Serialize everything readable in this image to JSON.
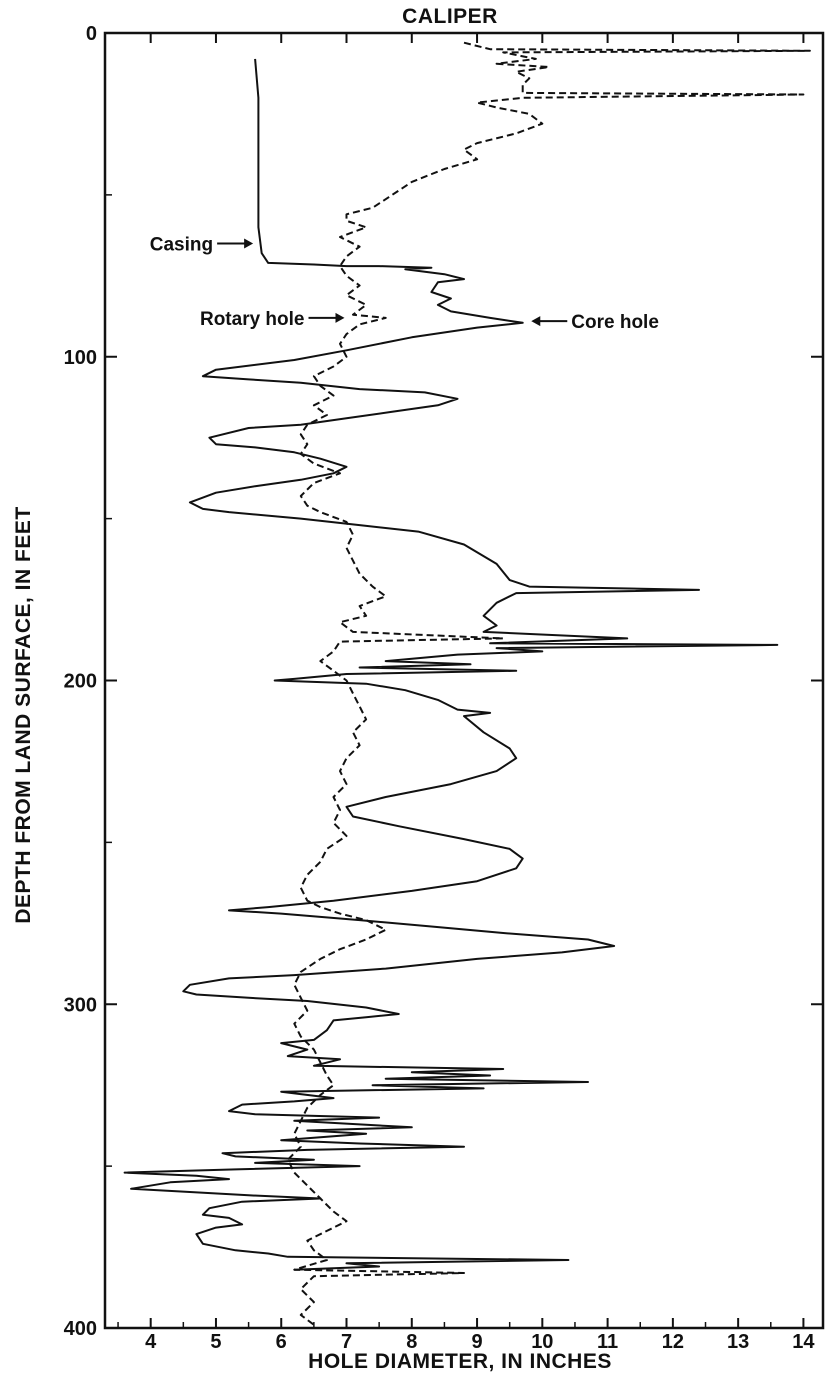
{
  "chart_data": {
    "type": "line",
    "title": "CALIPER",
    "xlabel": "HOLE DIAMETER, IN INCHES",
    "ylabel": "DEPTH FROM LAND SURFACE, IN FEET",
    "xlim": [
      3.3,
      14.3
    ],
    "ylim": [
      0,
      400
    ],
    "y_inverted": true,
    "x_ticks": [
      "4",
      "5",
      "6",
      "7",
      "8",
      "9",
      "10",
      "11",
      "12",
      "13",
      "14"
    ],
    "y_ticks": [
      "0",
      "100",
      "200",
      "300",
      "400"
    ],
    "grid": false,
    "legend": "none",
    "annotations": [
      {
        "text": "Casing",
        "point": [
          5.6,
          65
        ]
      },
      {
        "text": "Rotary hole",
        "point": [
          7.0,
          88
        ]
      },
      {
        "text": "Core hole",
        "point": [
          9.8,
          89
        ]
      }
    ],
    "series": [
      {
        "style": "solid",
        "points": [
          [
            5.6,
            8
          ],
          [
            5.65,
            20
          ],
          [
            5.65,
            40
          ],
          [
            5.65,
            60
          ],
          [
            5.7,
            68
          ],
          [
            5.8,
            71
          ],
          [
            6.5,
            71.5
          ],
          [
            7.0,
            72
          ],
          [
            7.5,
            72
          ],
          [
            8.3,
            72.5
          ],
          [
            7.9,
            73
          ],
          [
            8.5,
            74.5
          ],
          [
            8.8,
            76
          ],
          [
            8.4,
            77
          ],
          [
            8.3,
            80
          ],
          [
            8.6,
            82
          ],
          [
            8.4,
            84
          ],
          [
            8.6,
            86
          ],
          [
            9.2,
            88
          ],
          [
            9.7,
            89.5
          ],
          [
            9.0,
            91
          ],
          [
            8.0,
            94
          ],
          [
            7.0,
            98
          ],
          [
            6.2,
            101
          ],
          [
            5.0,
            104
          ],
          [
            4.8,
            106
          ],
          [
            5.5,
            107
          ],
          [
            6.3,
            108
          ],
          [
            7.2,
            110
          ],
          [
            8.2,
            111
          ],
          [
            8.7,
            113
          ],
          [
            8.4,
            115
          ],
          [
            7.7,
            117
          ],
          [
            7.0,
            119
          ],
          [
            6.3,
            121
          ],
          [
            5.5,
            122
          ],
          [
            4.9,
            125
          ],
          [
            5.0,
            127
          ],
          [
            5.6,
            128
          ],
          [
            6.2,
            129.5
          ],
          [
            6.6,
            131.5
          ],
          [
            7.0,
            134
          ],
          [
            6.8,
            136
          ],
          [
            6.3,
            138
          ],
          [
            5.6,
            140
          ],
          [
            5.0,
            142
          ],
          [
            4.6,
            145
          ],
          [
            4.8,
            147
          ],
          [
            5.2,
            148
          ],
          [
            6.3,
            150
          ],
          [
            7.2,
            152
          ],
          [
            8.1,
            154
          ],
          [
            8.8,
            158
          ],
          [
            9.3,
            164
          ],
          [
            9.5,
            169
          ],
          [
            9.8,
            171
          ],
          [
            12.4,
            172
          ],
          [
            9.6,
            173
          ],
          [
            9.3,
            176
          ],
          [
            9.1,
            180
          ],
          [
            9.3,
            183
          ],
          [
            9.1,
            185
          ],
          [
            11.3,
            187
          ],
          [
            9.2,
            188.5
          ],
          [
            13.6,
            189
          ],
          [
            9.3,
            190
          ],
          [
            10.0,
            191
          ],
          [
            8.7,
            192
          ],
          [
            7.6,
            194
          ],
          [
            8.9,
            195
          ],
          [
            7.2,
            196
          ],
          [
            9.6,
            197
          ],
          [
            7.0,
            198
          ],
          [
            6.2,
            199.5
          ],
          [
            5.9,
            200
          ],
          [
            7.3,
            201
          ],
          [
            7.9,
            203
          ],
          [
            8.4,
            206
          ],
          [
            8.7,
            209
          ],
          [
            9.2,
            210
          ],
          [
            8.8,
            211
          ],
          [
            9.1,
            216
          ],
          [
            9.5,
            221
          ],
          [
            9.6,
            224
          ],
          [
            9.3,
            228
          ],
          [
            8.6,
            232
          ],
          [
            7.6,
            236
          ],
          [
            7.0,
            239
          ],
          [
            7.1,
            242
          ],
          [
            7.8,
            245
          ],
          [
            8.8,
            249
          ],
          [
            9.5,
            252
          ],
          [
            9.7,
            255
          ],
          [
            9.6,
            258
          ],
          [
            9.0,
            262
          ],
          [
            8.0,
            265
          ],
          [
            6.8,
            268
          ],
          [
            5.8,
            270
          ],
          [
            5.2,
            271
          ],
          [
            6.0,
            272
          ],
          [
            7.2,
            274
          ],
          [
            8.3,
            276
          ],
          [
            9.4,
            278
          ],
          [
            10.7,
            280
          ],
          [
            11.1,
            282
          ],
          [
            10.3,
            284
          ],
          [
            9.0,
            286
          ],
          [
            7.6,
            289
          ],
          [
            6.2,
            291
          ],
          [
            5.2,
            292
          ],
          [
            4.6,
            294
          ],
          [
            4.5,
            296
          ],
          [
            4.7,
            297
          ],
          [
            5.5,
            298
          ],
          [
            6.4,
            299
          ],
          [
            7.3,
            301
          ],
          [
            7.8,
            303
          ],
          [
            7.3,
            304
          ],
          [
            6.8,
            305
          ],
          [
            6.7,
            308
          ],
          [
            6.5,
            311
          ],
          [
            6.0,
            312
          ],
          [
            6.4,
            314
          ],
          [
            6.1,
            316
          ],
          [
            6.9,
            317
          ],
          [
            6.5,
            319
          ],
          [
            9.4,
            320
          ],
          [
            8.0,
            321
          ],
          [
            9.2,
            322
          ],
          [
            7.6,
            323
          ],
          [
            10.7,
            324
          ],
          [
            7.4,
            325
          ],
          [
            9.1,
            326
          ],
          [
            6.0,
            327
          ],
          [
            6.8,
            329
          ],
          [
            6.2,
            330
          ],
          [
            5.4,
            331
          ],
          [
            5.2,
            333
          ],
          [
            5.6,
            334
          ],
          [
            7.5,
            335
          ],
          [
            6.2,
            336
          ],
          [
            8.0,
            338
          ],
          [
            6.4,
            339
          ],
          [
            7.3,
            340
          ],
          [
            6.0,
            342
          ],
          [
            7.2,
            343
          ],
          [
            8.8,
            344
          ],
          [
            6.4,
            345
          ],
          [
            5.1,
            346
          ],
          [
            5.3,
            347
          ],
          [
            6.5,
            348
          ],
          [
            5.6,
            349
          ],
          [
            7.2,
            350
          ],
          [
            5.3,
            351
          ],
          [
            3.6,
            352
          ],
          [
            4.7,
            353
          ],
          [
            5.2,
            354
          ],
          [
            4.3,
            355
          ],
          [
            3.7,
            357
          ],
          [
            4.6,
            358
          ],
          [
            5.5,
            359
          ],
          [
            6.6,
            360
          ],
          [
            5.4,
            361
          ],
          [
            4.9,
            363
          ],
          [
            4.8,
            365
          ],
          [
            5.2,
            366
          ],
          [
            5.4,
            368
          ],
          [
            5.0,
            369
          ],
          [
            4.7,
            371
          ],
          [
            4.8,
            374
          ],
          [
            5.3,
            376
          ],
          [
            5.8,
            377
          ],
          [
            6.1,
            378
          ],
          [
            10.4,
            379
          ],
          [
            7.0,
            380
          ],
          [
            7.5,
            381
          ],
          [
            6.2,
            382
          ]
        ]
      },
      {
        "style": "dashed",
        "points": [
          [
            8.8,
            3
          ],
          [
            9.2,
            5
          ],
          [
            14.1,
            5.5
          ],
          [
            9.4,
            6
          ],
          [
            9.9,
            8
          ],
          [
            9.3,
            9.5
          ],
          [
            10.1,
            10.5
          ],
          [
            9.6,
            12
          ],
          [
            9.8,
            14
          ],
          [
            9.7,
            16
          ],
          [
            9.7,
            18.5
          ],
          [
            14.0,
            19
          ],
          [
            9.7,
            20
          ],
          [
            9.0,
            21.5
          ],
          [
            9.3,
            23
          ],
          [
            9.8,
            25
          ],
          [
            10.0,
            28
          ],
          [
            9.6,
            31
          ],
          [
            9.0,
            34
          ],
          [
            8.8,
            36
          ],
          [
            9.0,
            39
          ],
          [
            8.5,
            42
          ],
          [
            8.0,
            46
          ],
          [
            7.7,
            50
          ],
          [
            7.4,
            54
          ],
          [
            7.0,
            56
          ],
          [
            7.0,
            58
          ],
          [
            7.3,
            60
          ],
          [
            6.9,
            63
          ],
          [
            7.2,
            66
          ],
          [
            7.0,
            69
          ],
          [
            6.9,
            72
          ],
          [
            7.0,
            75
          ],
          [
            7.2,
            78
          ],
          [
            7.0,
            81
          ],
          [
            7.3,
            84
          ],
          [
            7.1,
            87
          ],
          [
            7.6,
            88
          ],
          [
            7.2,
            90
          ],
          [
            7.0,
            93
          ],
          [
            6.9,
            96
          ],
          [
            7.0,
            100
          ],
          [
            6.8,
            103
          ],
          [
            6.5,
            106
          ],
          [
            6.6,
            109
          ],
          [
            6.8,
            112
          ],
          [
            6.5,
            115
          ],
          [
            6.7,
            118
          ],
          [
            6.4,
            121
          ],
          [
            6.3,
            124
          ],
          [
            6.4,
            127
          ],
          [
            6.3,
            130
          ],
          [
            6.5,
            133
          ],
          [
            6.9,
            136
          ],
          [
            6.5,
            139
          ],
          [
            6.3,
            143
          ],
          [
            6.4,
            146
          ],
          [
            6.6,
            148
          ],
          [
            7.0,
            151
          ],
          [
            7.1,
            155
          ],
          [
            7.0,
            159
          ],
          [
            7.1,
            163
          ],
          [
            7.2,
            167
          ],
          [
            7.4,
            171
          ],
          [
            7.6,
            174
          ],
          [
            7.2,
            177
          ],
          [
            7.3,
            180
          ],
          [
            6.9,
            182
          ],
          [
            7.1,
            185
          ],
          [
            9.4,
            187
          ],
          [
            6.9,
            188
          ],
          [
            6.8,
            191
          ],
          [
            6.6,
            194
          ],
          [
            6.8,
            197
          ],
          [
            7.0,
            200
          ],
          [
            7.1,
            204
          ],
          [
            7.2,
            208
          ],
          [
            7.3,
            212
          ],
          [
            7.1,
            216
          ],
          [
            7.2,
            220
          ],
          [
            7.0,
            224
          ],
          [
            6.9,
            228
          ],
          [
            7.0,
            232
          ],
          [
            6.8,
            236
          ],
          [
            6.9,
            240
          ],
          [
            6.8,
            244
          ],
          [
            7.0,
            248
          ],
          [
            6.7,
            252
          ],
          [
            6.6,
            256
          ],
          [
            6.4,
            260
          ],
          [
            6.3,
            264
          ],
          [
            6.4,
            268
          ],
          [
            6.6,
            270
          ],
          [
            6.9,
            272
          ],
          [
            7.3,
            274
          ],
          [
            7.6,
            277
          ],
          [
            7.3,
            280
          ],
          [
            6.9,
            283
          ],
          [
            6.6,
            286
          ],
          [
            6.3,
            290
          ],
          [
            6.2,
            294
          ],
          [
            6.3,
            298
          ],
          [
            6.4,
            302
          ],
          [
            6.2,
            306
          ],
          [
            6.3,
            310
          ],
          [
            6.5,
            314
          ],
          [
            6.6,
            318
          ],
          [
            6.7,
            322
          ],
          [
            6.8,
            325
          ],
          [
            6.6,
            328
          ],
          [
            6.4,
            332
          ],
          [
            6.3,
            336
          ],
          [
            6.2,
            340
          ],
          [
            6.3,
            344
          ],
          [
            6.1,
            348
          ],
          [
            6.2,
            352
          ],
          [
            6.4,
            356
          ],
          [
            6.6,
            360
          ],
          [
            6.8,
            364
          ],
          [
            7.0,
            367
          ],
          [
            6.7,
            370
          ],
          [
            6.4,
            373
          ],
          [
            6.5,
            376
          ],
          [
            6.7,
            379
          ],
          [
            6.2,
            382
          ],
          [
            8.8,
            383
          ],
          [
            6.5,
            384
          ],
          [
            6.3,
            388
          ],
          [
            6.5,
            392
          ],
          [
            6.3,
            396
          ],
          [
            6.5,
            399
          ]
        ]
      }
    ]
  }
}
